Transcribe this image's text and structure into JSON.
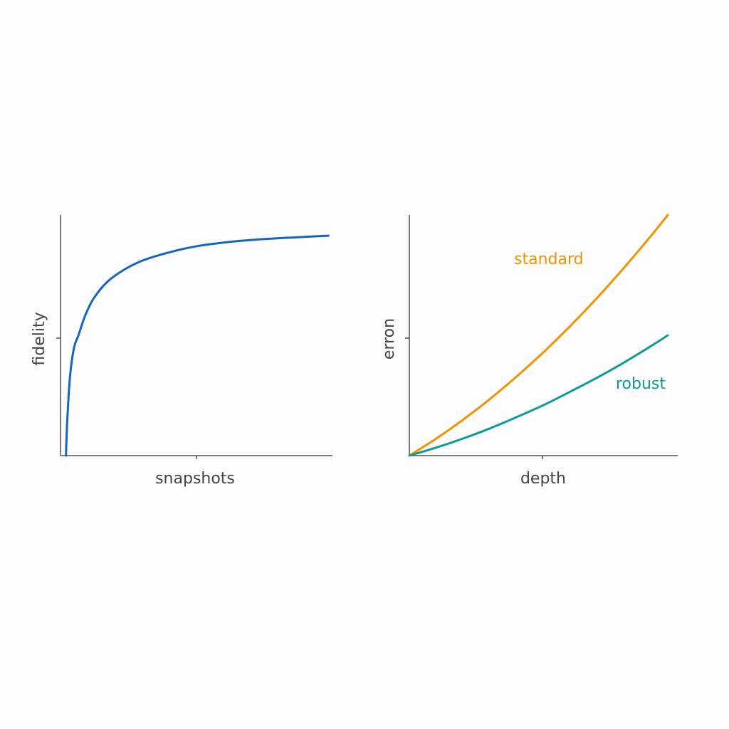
{
  "chart_data": [
    {
      "type": "line",
      "xlabel": "snapshots",
      "ylabel": "fidelity",
      "xlim": [
        0,
        1
      ],
      "ylim": [
        0,
        1
      ],
      "x_ticks": [
        0.5
      ],
      "y_ticks": [
        0.5
      ],
      "tick_labels_shown": false,
      "grid": false,
      "series": [
        {
          "color": "#1565c0",
          "x": [
            0.02,
            0.025,
            0.035,
            0.05,
            0.066,
            0.09,
            0.12,
            0.17,
            0.23,
            0.3,
            0.4,
            0.5,
            0.62,
            0.75,
            0.88,
            0.985
          ],
          "y": [
            0.0,
            0.15,
            0.33,
            0.45,
            0.5,
            0.58,
            0.65,
            0.72,
            0.77,
            0.81,
            0.845,
            0.87,
            0.888,
            0.9,
            0.908,
            0.914
          ]
        }
      ]
    },
    {
      "type": "line",
      "xlabel": "depth",
      "ylabel": "erron",
      "xlim": [
        0,
        1
      ],
      "ylim": [
        0,
        1
      ],
      "x_ticks": [
        0.5
      ],
      "y_ticks": [
        0.5
      ],
      "tick_labels_shown": false,
      "grid": false,
      "series": [
        {
          "name": "standard",
          "color": "#f39200",
          "x": [
            0,
            0.1,
            0.2,
            0.3,
            0.4,
            0.5,
            0.6,
            0.7,
            0.8,
            0.9,
            0.963
          ],
          "y": [
            0,
            0.0706,
            0.149,
            0.235,
            0.329,
            0.43,
            0.539,
            0.656,
            0.781,
            0.913,
            1.0
          ]
        },
        {
          "name": "robust",
          "color": "#0e9a9a",
          "x": [
            0,
            0.1,
            0.2,
            0.3,
            0.4,
            0.5,
            0.6,
            0.7,
            0.8,
            0.9,
            0.963
          ],
          "y": [
            0,
            0.0334,
            0.071,
            0.113,
            0.16,
            0.21,
            0.266,
            0.324,
            0.387,
            0.455,
            0.5
          ]
        }
      ]
    }
  ]
}
